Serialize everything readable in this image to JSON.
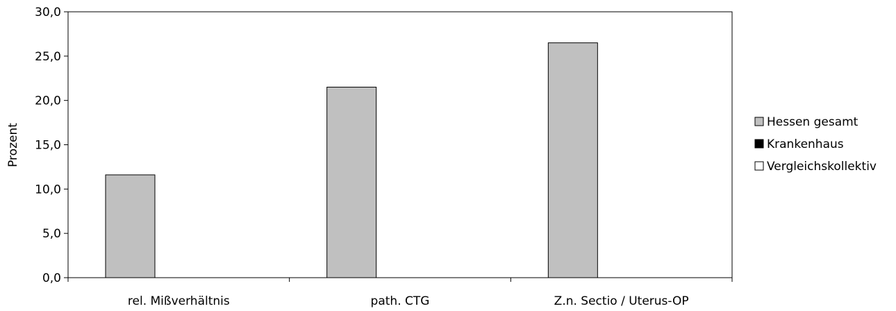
{
  "chart_data": {
    "type": "bar",
    "title": "",
    "xlabel": "",
    "ylabel": "Prozent",
    "ylim": [
      0,
      30
    ],
    "yticks": [
      "0,0",
      "5,0",
      "10,0",
      "15,0",
      "20,0",
      "25,0",
      "30,0"
    ],
    "categories": [
      "rel. Mißverhältnis",
      "path. CTG",
      "Z.n. Sectio / Uterus-OP"
    ],
    "series": [
      {
        "name": "Hessen gesamt",
        "color": "#c0c0c0",
        "values": [
          11.6,
          21.5,
          26.5
        ]
      },
      {
        "name": "Krankenhaus",
        "color": "#000000",
        "values": [
          null,
          null,
          null
        ]
      },
      {
        "name": "Vergleichskollektiv",
        "color": "#ffffff",
        "values": [
          null,
          null,
          null
        ]
      }
    ],
    "grid": false,
    "legend_position": "right"
  }
}
